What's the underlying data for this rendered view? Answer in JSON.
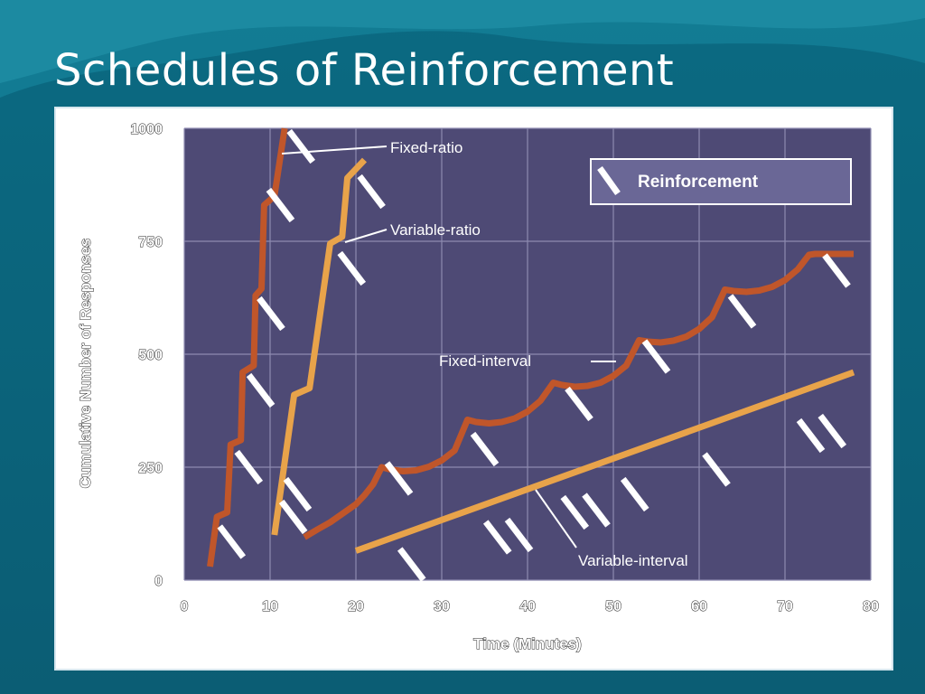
{
  "slide": {
    "title": "Schedules of Reinforcement",
    "background_color": "#0d6f86",
    "accent_color": "#1a8aa3"
  },
  "chart_data": {
    "type": "line",
    "xlabel": "Time (Minutes)",
    "ylabel": "Cumulative Number of Responses",
    "xlim": [
      0,
      80
    ],
    "ylim": [
      0,
      1000
    ],
    "x_ticks": [
      "0",
      "10",
      "20",
      "30",
      "40",
      "50",
      "60",
      "70",
      "80"
    ],
    "y_ticks": [
      {
        "label": "0",
        "value": 0
      },
      {
        "label": "250",
        "value": 250
      },
      {
        "label": "500",
        "value": 500
      },
      {
        "label": "750",
        "value": 750
      },
      {
        "label": "1000",
        "value": 1000
      }
    ],
    "grid": true,
    "plot_background": "#4e4a75",
    "legend": {
      "label": "Reinforcement",
      "symbol": "slash-mark",
      "position": "top-right"
    },
    "series": [
      {
        "name": "Fixed-ratio",
        "color": "#c0562a",
        "points": [
          [
            3,
            30
          ],
          [
            3.8,
            140
          ],
          [
            5,
            150
          ],
          [
            5.4,
            300
          ],
          [
            6.6,
            310
          ],
          [
            6.8,
            460
          ],
          [
            8.1,
            475
          ],
          [
            8.3,
            630
          ],
          [
            9,
            645
          ],
          [
            9.3,
            830
          ],
          [
            10.5,
            850
          ],
          [
            11.7,
            1000
          ]
        ],
        "reinforcements": [
          [
            5.5,
            85
          ],
          [
            7.5,
            250
          ],
          [
            8.9,
            420
          ],
          [
            10.1,
            590
          ],
          [
            11.2,
            830
          ],
          [
            13.6,
            960
          ]
        ]
      },
      {
        "name": "Variable-ratio",
        "color": "#e8a34a",
        "points": [
          [
            10.5,
            100
          ],
          [
            12.8,
            410
          ],
          [
            14.6,
            425
          ],
          [
            17,
            745
          ],
          [
            18.4,
            760
          ],
          [
            19,
            890
          ],
          [
            21,
            930
          ]
        ],
        "reinforcements": [
          [
            12.7,
            140
          ],
          [
            13.2,
            190
          ],
          [
            19.5,
            690
          ],
          [
            21.8,
            860
          ]
        ]
      },
      {
        "name": "Fixed-interval",
        "color": "#c0562a",
        "points": [
          [
            14,
            95
          ],
          [
            15.5,
            112
          ],
          [
            17,
            128
          ],
          [
            18.5,
            148
          ],
          [
            20,
            168
          ],
          [
            21,
            188
          ],
          [
            22,
            212
          ],
          [
            23,
            250
          ],
          [
            24,
            245
          ],
          [
            25.5,
            241
          ],
          [
            27,
            243
          ],
          [
            28.5,
            251
          ],
          [
            30,
            265
          ],
          [
            31.5,
            287
          ],
          [
            33,
            355
          ],
          [
            34,
            350
          ],
          [
            35.5,
            347
          ],
          [
            37,
            350
          ],
          [
            38.5,
            358
          ],
          [
            40,
            373
          ],
          [
            41.5,
            397
          ],
          [
            43,
            437
          ],
          [
            44,
            432
          ],
          [
            45.5,
            428
          ],
          [
            47,
            430
          ],
          [
            48.5,
            437
          ],
          [
            50,
            452
          ],
          [
            51.5,
            475
          ],
          [
            53,
            531
          ],
          [
            54,
            528
          ],
          [
            55.5,
            526
          ],
          [
            57,
            530
          ],
          [
            58.5,
            539
          ],
          [
            60,
            556
          ],
          [
            61.5,
            582
          ],
          [
            63,
            643
          ],
          [
            64,
            640
          ],
          [
            65.5,
            638
          ],
          [
            67,
            641
          ],
          [
            68.5,
            649
          ],
          [
            70,
            664
          ],
          [
            71.5,
            688
          ],
          [
            72.8,
            720
          ],
          [
            73.5,
            722
          ],
          [
            78,
            722
          ]
        ],
        "reinforcements": [
          [
            25,
            225
          ],
          [
            35,
            290
          ],
          [
            46,
            390
          ],
          [
            55,
            495
          ],
          [
            65,
            595
          ],
          [
            76,
            685
          ]
        ]
      },
      {
        "name": "Variable-interval",
        "color": "#e8a34a",
        "points": [
          [
            20,
            65
          ],
          [
            78,
            460
          ]
        ],
        "reinforcements": [
          [
            26.5,
            35
          ],
          [
            36.5,
            95
          ],
          [
            39,
            100
          ],
          [
            45.5,
            150
          ],
          [
            48,
            155
          ],
          [
            52.5,
            190
          ],
          [
            62,
            245
          ],
          [
            73,
            320
          ],
          [
            75.5,
            330
          ]
        ]
      }
    ]
  }
}
